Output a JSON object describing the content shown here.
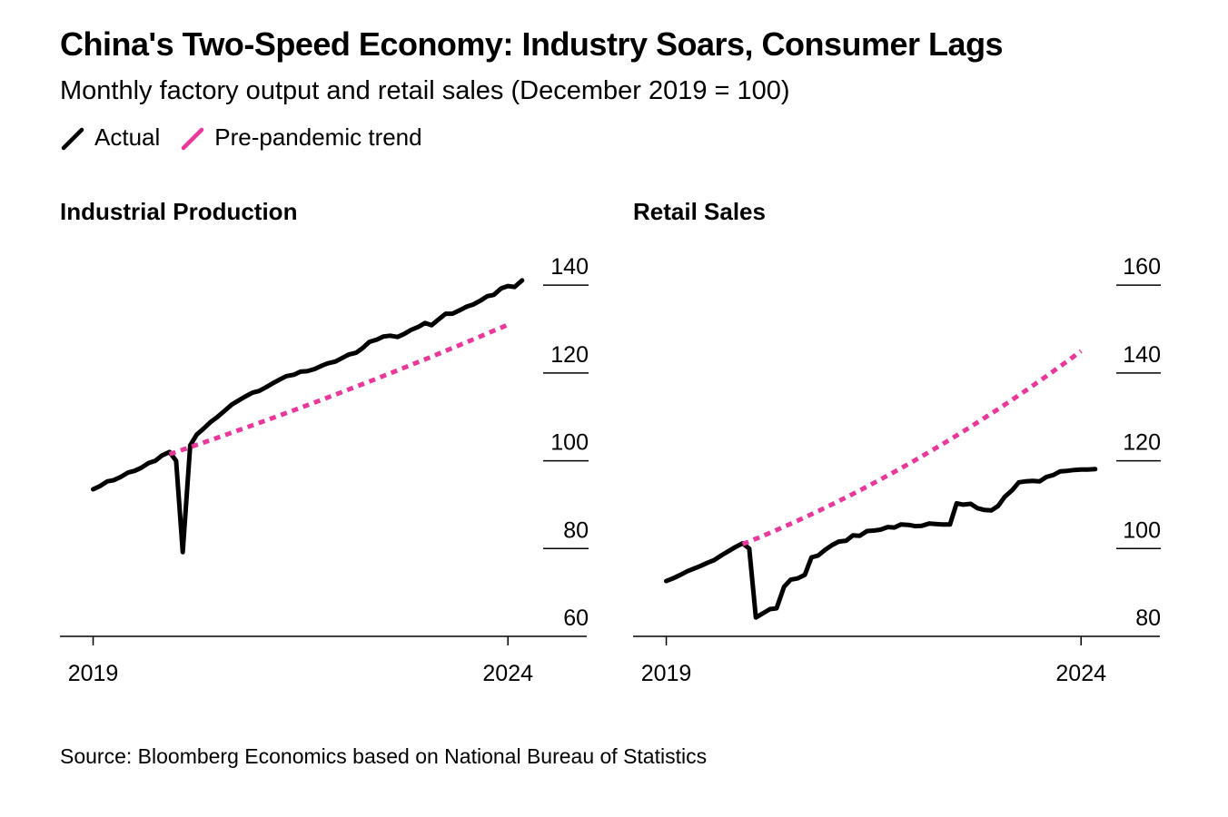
{
  "title": "China's Two-Speed Economy: Industry Soars, Consumer Lags",
  "subtitle": "Monthly factory output and retail sales (December 2019 = 100)",
  "legend": [
    {
      "label": "Actual",
      "color": "#000000",
      "style": "solid"
    },
    {
      "label": "Pre-pandemic trend",
      "color": "#e8399a",
      "style": "dashed"
    }
  ],
  "source": "Source: Bloomberg Economics based on National Bureau of Statistics",
  "chart_data": [
    {
      "type": "line",
      "title": "Industrial Production",
      "xlabel": "",
      "ylabel": "",
      "x_ticks": [
        "2019",
        "2024"
      ],
      "y_ticks": [
        60,
        80,
        100,
        120,
        140
      ],
      "ylim": [
        60,
        145
      ],
      "xlim": [
        2018.6,
        2024.95
      ],
      "y_axis_side": "right",
      "grid": false,
      "series": [
        {
          "name": "Actual",
          "color": "#000000",
          "style": "solid",
          "points": [
            [
              2019.0,
              93.5
            ],
            [
              2019.08,
              94.2
            ],
            [
              2019.17,
              95.3
            ],
            [
              2019.25,
              95.6
            ],
            [
              2019.33,
              96.3
            ],
            [
              2019.42,
              97.3
            ],
            [
              2019.5,
              97.7
            ],
            [
              2019.58,
              98.4
            ],
            [
              2019.67,
              99.5
            ],
            [
              2019.75,
              100.0
            ],
            [
              2019.83,
              101.2
            ],
            [
              2019.92,
              102.0
            ],
            [
              2020.0,
              100.0
            ],
            [
              2020.08,
              79.2
            ],
            [
              2020.17,
              103.5
            ],
            [
              2020.25,
              106.0
            ],
            [
              2020.33,
              107.3
            ],
            [
              2020.42,
              108.9
            ],
            [
              2020.5,
              110.0
            ],
            [
              2020.58,
              111.3
            ],
            [
              2020.67,
              112.8
            ],
            [
              2020.75,
              113.7
            ],
            [
              2020.83,
              114.6
            ],
            [
              2020.92,
              115.5
            ],
            [
              2021.0,
              115.9
            ],
            [
              2021.08,
              116.7
            ],
            [
              2021.17,
              117.7
            ],
            [
              2021.25,
              118.5
            ],
            [
              2021.33,
              119.3
            ],
            [
              2021.42,
              119.6
            ],
            [
              2021.5,
              120.3
            ],
            [
              2021.58,
              120.4
            ],
            [
              2021.67,
              120.9
            ],
            [
              2021.75,
              121.6
            ],
            [
              2021.83,
              122.2
            ],
            [
              2021.92,
              122.6
            ],
            [
              2022.0,
              123.4
            ],
            [
              2022.08,
              124.2
            ],
            [
              2022.17,
              124.6
            ],
            [
              2022.25,
              125.7
            ],
            [
              2022.33,
              127.1
            ],
            [
              2022.42,
              127.6
            ],
            [
              2022.5,
              128.3
            ],
            [
              2022.58,
              128.5
            ],
            [
              2022.67,
              128.2
            ],
            [
              2022.75,
              128.9
            ],
            [
              2022.83,
              129.8
            ],
            [
              2022.92,
              130.5
            ],
            [
              2023.0,
              131.4
            ],
            [
              2023.08,
              130.9
            ],
            [
              2023.17,
              132.3
            ],
            [
              2023.25,
              133.5
            ],
            [
              2023.33,
              133.5
            ],
            [
              2023.42,
              134.3
            ],
            [
              2023.5,
              135.1
            ],
            [
              2023.58,
              135.6
            ],
            [
              2023.67,
              136.5
            ],
            [
              2023.75,
              137.5
            ],
            [
              2023.83,
              137.8
            ],
            [
              2023.92,
              139.3
            ],
            [
              2024.0,
              139.8
            ],
            [
              2024.08,
              139.6
            ],
            [
              2024.17,
              141.1
            ]
          ]
        },
        {
          "name": "Pre-pandemic trend",
          "color": "#e8399a",
          "style": "dashed",
          "points": [
            [
              2019.92,
              101.5
            ],
            [
              2024.0,
              131.0
            ]
          ],
          "curvature": 0.12
        }
      ]
    },
    {
      "type": "line",
      "title": "Retail Sales",
      "xlabel": "",
      "ylabel": "",
      "x_ticks": [
        "2019",
        "2024"
      ],
      "y_ticks": [
        80,
        100,
        120,
        140,
        160
      ],
      "ylim": [
        80,
        165
      ],
      "xlim": [
        2018.6,
        2024.95
      ],
      "y_axis_side": "right",
      "grid": false,
      "series": [
        {
          "name": "Actual",
          "color": "#000000",
          "style": "solid",
          "points": [
            [
              2019.0,
              92.6
            ],
            [
              2019.08,
              93.2
            ],
            [
              2019.17,
              94.0
            ],
            [
              2019.25,
              94.8
            ],
            [
              2019.33,
              95.4
            ],
            [
              2019.42,
              96.1
            ],
            [
              2019.5,
              96.8
            ],
            [
              2019.58,
              97.4
            ],
            [
              2019.67,
              98.5
            ],
            [
              2019.75,
              99.4
            ],
            [
              2019.83,
              100.3
            ],
            [
              2019.92,
              101.2
            ],
            [
              2020.0,
              100.0
            ],
            [
              2020.08,
              84.3
            ],
            [
              2020.17,
              85.3
            ],
            [
              2020.25,
              86.2
            ],
            [
              2020.33,
              86.4
            ],
            [
              2020.42,
              91.3
            ],
            [
              2020.5,
              92.9
            ],
            [
              2020.58,
              93.2
            ],
            [
              2020.67,
              94.0
            ],
            [
              2020.75,
              98.0
            ],
            [
              2020.83,
              98.4
            ],
            [
              2020.92,
              99.8
            ],
            [
              2021.0,
              100.8
            ],
            [
              2021.08,
              101.6
            ],
            [
              2021.17,
              101.8
            ],
            [
              2021.25,
              103.0
            ],
            [
              2021.33,
              102.9
            ],
            [
              2021.42,
              104.0
            ],
            [
              2021.5,
              104.1
            ],
            [
              2021.58,
              104.3
            ],
            [
              2021.67,
              104.9
            ],
            [
              2021.75,
              104.8
            ],
            [
              2021.83,
              105.5
            ],
            [
              2021.92,
              105.4
            ],
            [
              2022.0,
              105.1
            ],
            [
              2022.08,
              105.2
            ],
            [
              2022.17,
              105.7
            ],
            [
              2022.25,
              105.6
            ],
            [
              2022.33,
              105.5
            ],
            [
              2022.42,
              105.5
            ],
            [
              2022.5,
              110.3
            ],
            [
              2022.58,
              110.0
            ],
            [
              2022.67,
              110.2
            ],
            [
              2022.75,
              109.2
            ],
            [
              2022.83,
              108.8
            ],
            [
              2022.92,
              108.7
            ],
            [
              2023.0,
              109.7
            ],
            [
              2023.08,
              111.8
            ],
            [
              2023.17,
              113.3
            ],
            [
              2023.25,
              115.1
            ],
            [
              2023.33,
              115.3
            ],
            [
              2023.42,
              115.4
            ],
            [
              2023.5,
              115.3
            ],
            [
              2023.58,
              116.3
            ],
            [
              2023.67,
              116.8
            ],
            [
              2023.75,
              117.6
            ],
            [
              2023.83,
              117.7
            ],
            [
              2023.92,
              117.9
            ],
            [
              2024.0,
              118.0
            ],
            [
              2024.08,
              118.0
            ],
            [
              2024.17,
              118.1
            ]
          ]
        },
        {
          "name": "Pre-pandemic trend",
          "color": "#e8399a",
          "style": "dashed",
          "points": [
            [
              2019.92,
              101.0
            ],
            [
              2024.0,
              145.0
            ]
          ],
          "curvature": 0.3
        }
      ]
    }
  ]
}
